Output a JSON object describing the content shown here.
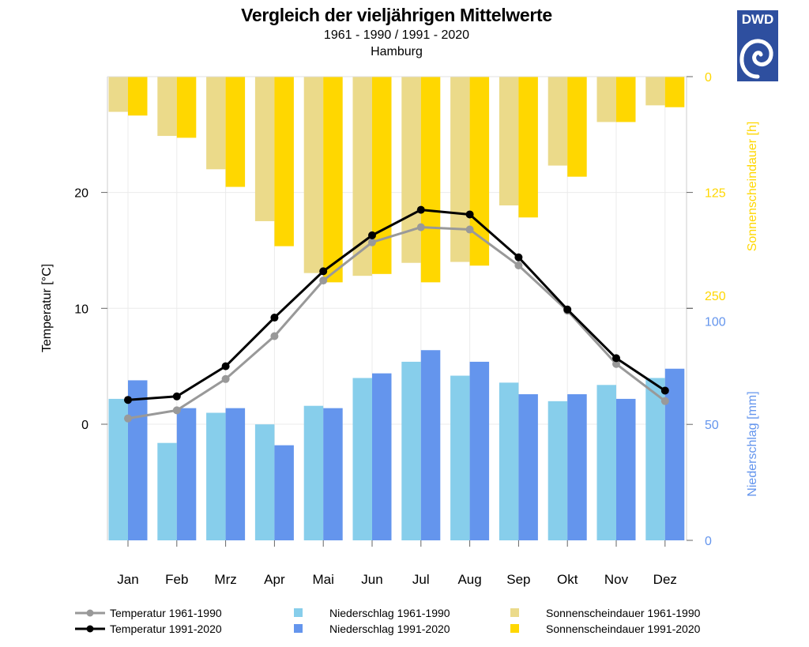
{
  "header": {
    "title": "Vergleich der vieljährigen Mittelwerte",
    "subtitle": "1961 - 1990 / 1991 - 2020",
    "location": "Hamburg",
    "logo_text": "DWD"
  },
  "chart_data": {
    "type": "bar+line",
    "title": "Vergleich der vieljährigen Mittelwerte",
    "subtitle": "1961 - 1990 / 1991 - 2020 — Hamburg",
    "categories": [
      "Jan",
      "Feb",
      "Mrz",
      "Apr",
      "Mai",
      "Jun",
      "Jul",
      "Aug",
      "Sep",
      "Okt",
      "Nov",
      "Dez"
    ],
    "axes": {
      "temperature": {
        "label": "Temperatur [°C]",
        "ticks": [
          "0",
          "10",
          "20"
        ],
        "range": [
          -10,
          30
        ],
        "position": "left",
        "color": "#000000"
      },
      "sunshine": {
        "label": "Sonnenscheindauer [h]",
        "ticks": [
          "0",
          "125",
          "250"
        ],
        "range": [
          0,
          250
        ],
        "inverted": true,
        "position": "right-top",
        "color": "#FFD700"
      },
      "precipitation": {
        "label": "Niederschlag [mm]",
        "ticks": [
          "0",
          "50",
          "100"
        ],
        "range": [
          0,
          100
        ],
        "position": "right-bottom",
        "color": "#6495ED"
      }
    },
    "grid": true,
    "series": [
      {
        "name": "Temperatur 1961-1990",
        "kind": "line",
        "axis": "temperature",
        "color": "#999999",
        "values": [
          0.5,
          1.2,
          3.9,
          7.6,
          12.4,
          15.7,
          17.0,
          16.8,
          13.7,
          9.8,
          5.2,
          2.0
        ]
      },
      {
        "name": "Temperatur 1991-2020",
        "kind": "line",
        "axis": "temperature",
        "color": "#000000",
        "values": [
          2.1,
          2.4,
          5.0,
          9.2,
          13.2,
          16.3,
          18.5,
          18.1,
          14.4,
          9.9,
          5.7,
          2.9
        ]
      },
      {
        "name": "Niederschlag 1961-1990",
        "kind": "bar",
        "axis": "precipitation",
        "color": "#87CEEB",
        "values": [
          61,
          42,
          55,
          50,
          58,
          70,
          77,
          71,
          68,
          60,
          67,
          70
        ]
      },
      {
        "name": "Niederschlag 1991-2020",
        "kind": "bar",
        "axis": "precipitation",
        "color": "#6495ED",
        "values": [
          69,
          57,
          57,
          41,
          57,
          72,
          82,
          77,
          63,
          63,
          61,
          74
        ]
      },
      {
        "name": "Sonnenscheindauer 1961-1990",
        "kind": "bar",
        "axis": "sunshine",
        "color": "#EBDA8A",
        "values": [
          38,
          64,
          100,
          156,
          212,
          215,
          201,
          200,
          139,
          96,
          49,
          31
        ]
      },
      {
        "name": "Sonnenscheindauer 1991-2020",
        "kind": "bar",
        "axis": "sunshine",
        "color": "#FFD700",
        "values": [
          42,
          66,
          119,
          183,
          222,
          213,
          222,
          204,
          152,
          108,
          49,
          33
        ]
      }
    ],
    "legend_position": "bottom"
  },
  "legend": {
    "items": [
      {
        "label": "Temperatur 1961-1990",
        "color": "#999999",
        "kind": "line"
      },
      {
        "label": "Temperatur 1991-2020",
        "color": "#000000",
        "kind": "line"
      },
      {
        "label": "Niederschlag 1961-1990",
        "color": "#87CEEB",
        "kind": "box"
      },
      {
        "label": "Niederschlag 1991-2020",
        "color": "#6495ED",
        "kind": "box"
      },
      {
        "label": "Sonnenscheindauer 1961-1990",
        "color": "#EBDA8A",
        "kind": "box"
      },
      {
        "label": "Sonnenscheindauer 1991-2020",
        "color": "#FFD700",
        "kind": "box"
      }
    ]
  }
}
